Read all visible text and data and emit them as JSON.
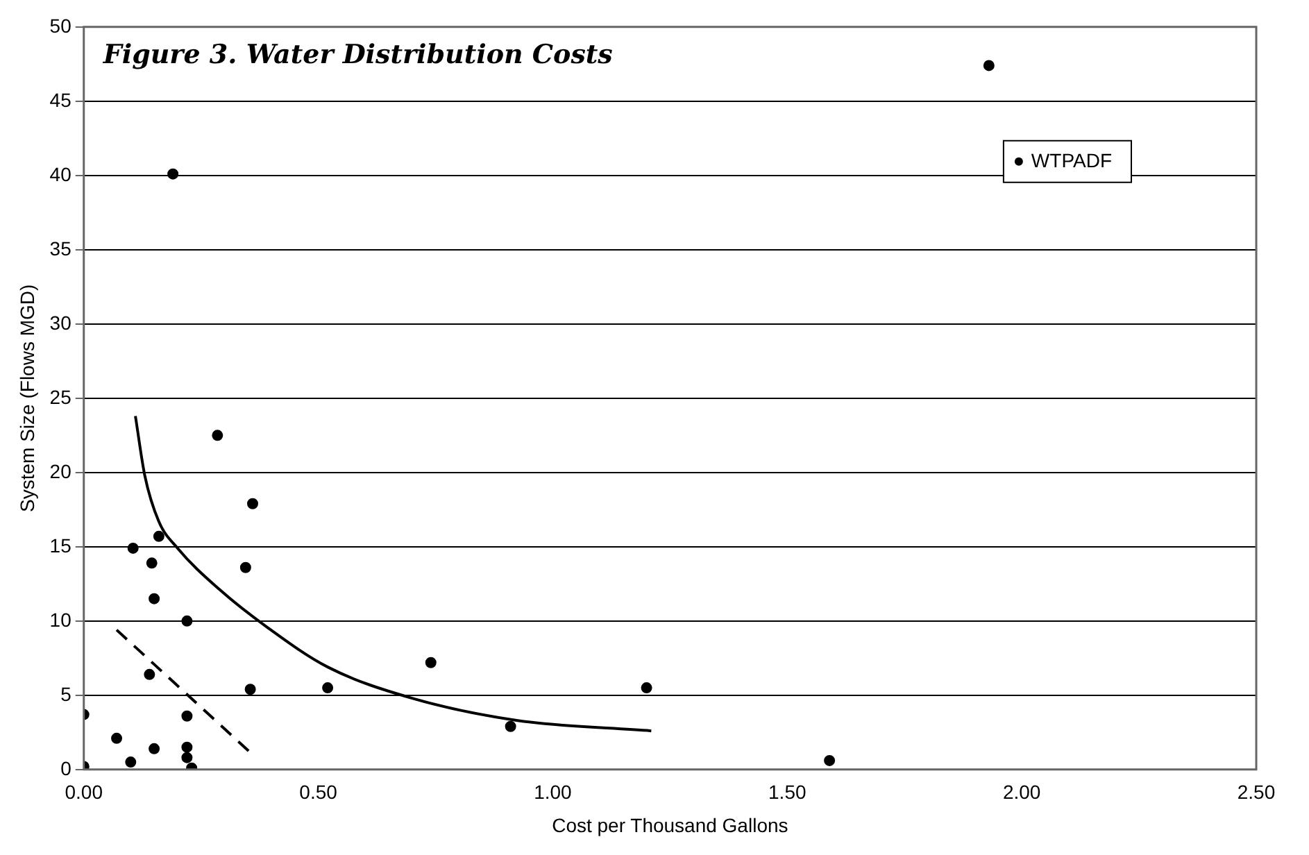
{
  "chart_data": {
    "type": "scatter",
    "title": "Figure 3. Water Distribution Costs",
    "xlabel": "Cost per Thousand Gallons",
    "ylabel": "System Size (Flows MGD)",
    "xlim": [
      0,
      2.5
    ],
    "xticks": [
      {
        "value": 0,
        "label": "0.00"
      },
      {
        "value": 0.5,
        "label": "0.50"
      },
      {
        "value": 1,
        "label": "1.00"
      },
      {
        "value": 1.5,
        "label": "1.50"
      },
      {
        "value": 2,
        "label": "2.00"
      },
      {
        "value": 2.5,
        "label": "2.50"
      }
    ],
    "ylim": [
      0,
      50
    ],
    "yticks": [
      0,
      5,
      10,
      15,
      20,
      25,
      30,
      35,
      40,
      45,
      50
    ],
    "grid": "y",
    "legend": "top right",
    "series": [
      {
        "name": "WTPADF",
        "marker": "circle",
        "color": "#000000",
        "x": [
          0,
          0,
          0.07,
          0.1,
          0.105,
          0.14,
          0.145,
          0.15,
          0.15,
          0.16,
          0.19,
          0.22,
          0.22,
          0.22,
          0.22,
          0.23,
          0.285,
          0.345,
          0.355,
          0.36,
          0.52,
          0.74,
          0.91,
          1.2,
          1.59,
          1.93
        ],
        "values": [
          3.7,
          0.2,
          2.1,
          0.5,
          14.9,
          6.4,
          13.9,
          11.5,
          1.4,
          15.7,
          40.1,
          10,
          3.6,
          1.5,
          0.8,
          0.1,
          22.5,
          13.6,
          5.4,
          17.9,
          5.5,
          7.2,
          2.9,
          5.5,
          0.6,
          47.4
        ]
      },
      {
        "type": "line",
        "marker": "none",
        "line_style": "solid",
        "color": "#000000",
        "x": [
          0.11,
          0.13,
          0.16,
          0.2,
          0.29,
          0.39,
          0.52,
          0.7,
          0.925,
          1.21
        ],
        "values": [
          23.8,
          19.8,
          16.7,
          14.9,
          12.1,
          9.6,
          6.9,
          4.8,
          3.3,
          2.6
        ]
      },
      {
        "type": "line",
        "marker": "none",
        "line_style": "dashed",
        "color": "#000000",
        "x": [
          0.07,
          0.36
        ],
        "values": [
          9.4,
          1.0
        ]
      }
    ]
  }
}
